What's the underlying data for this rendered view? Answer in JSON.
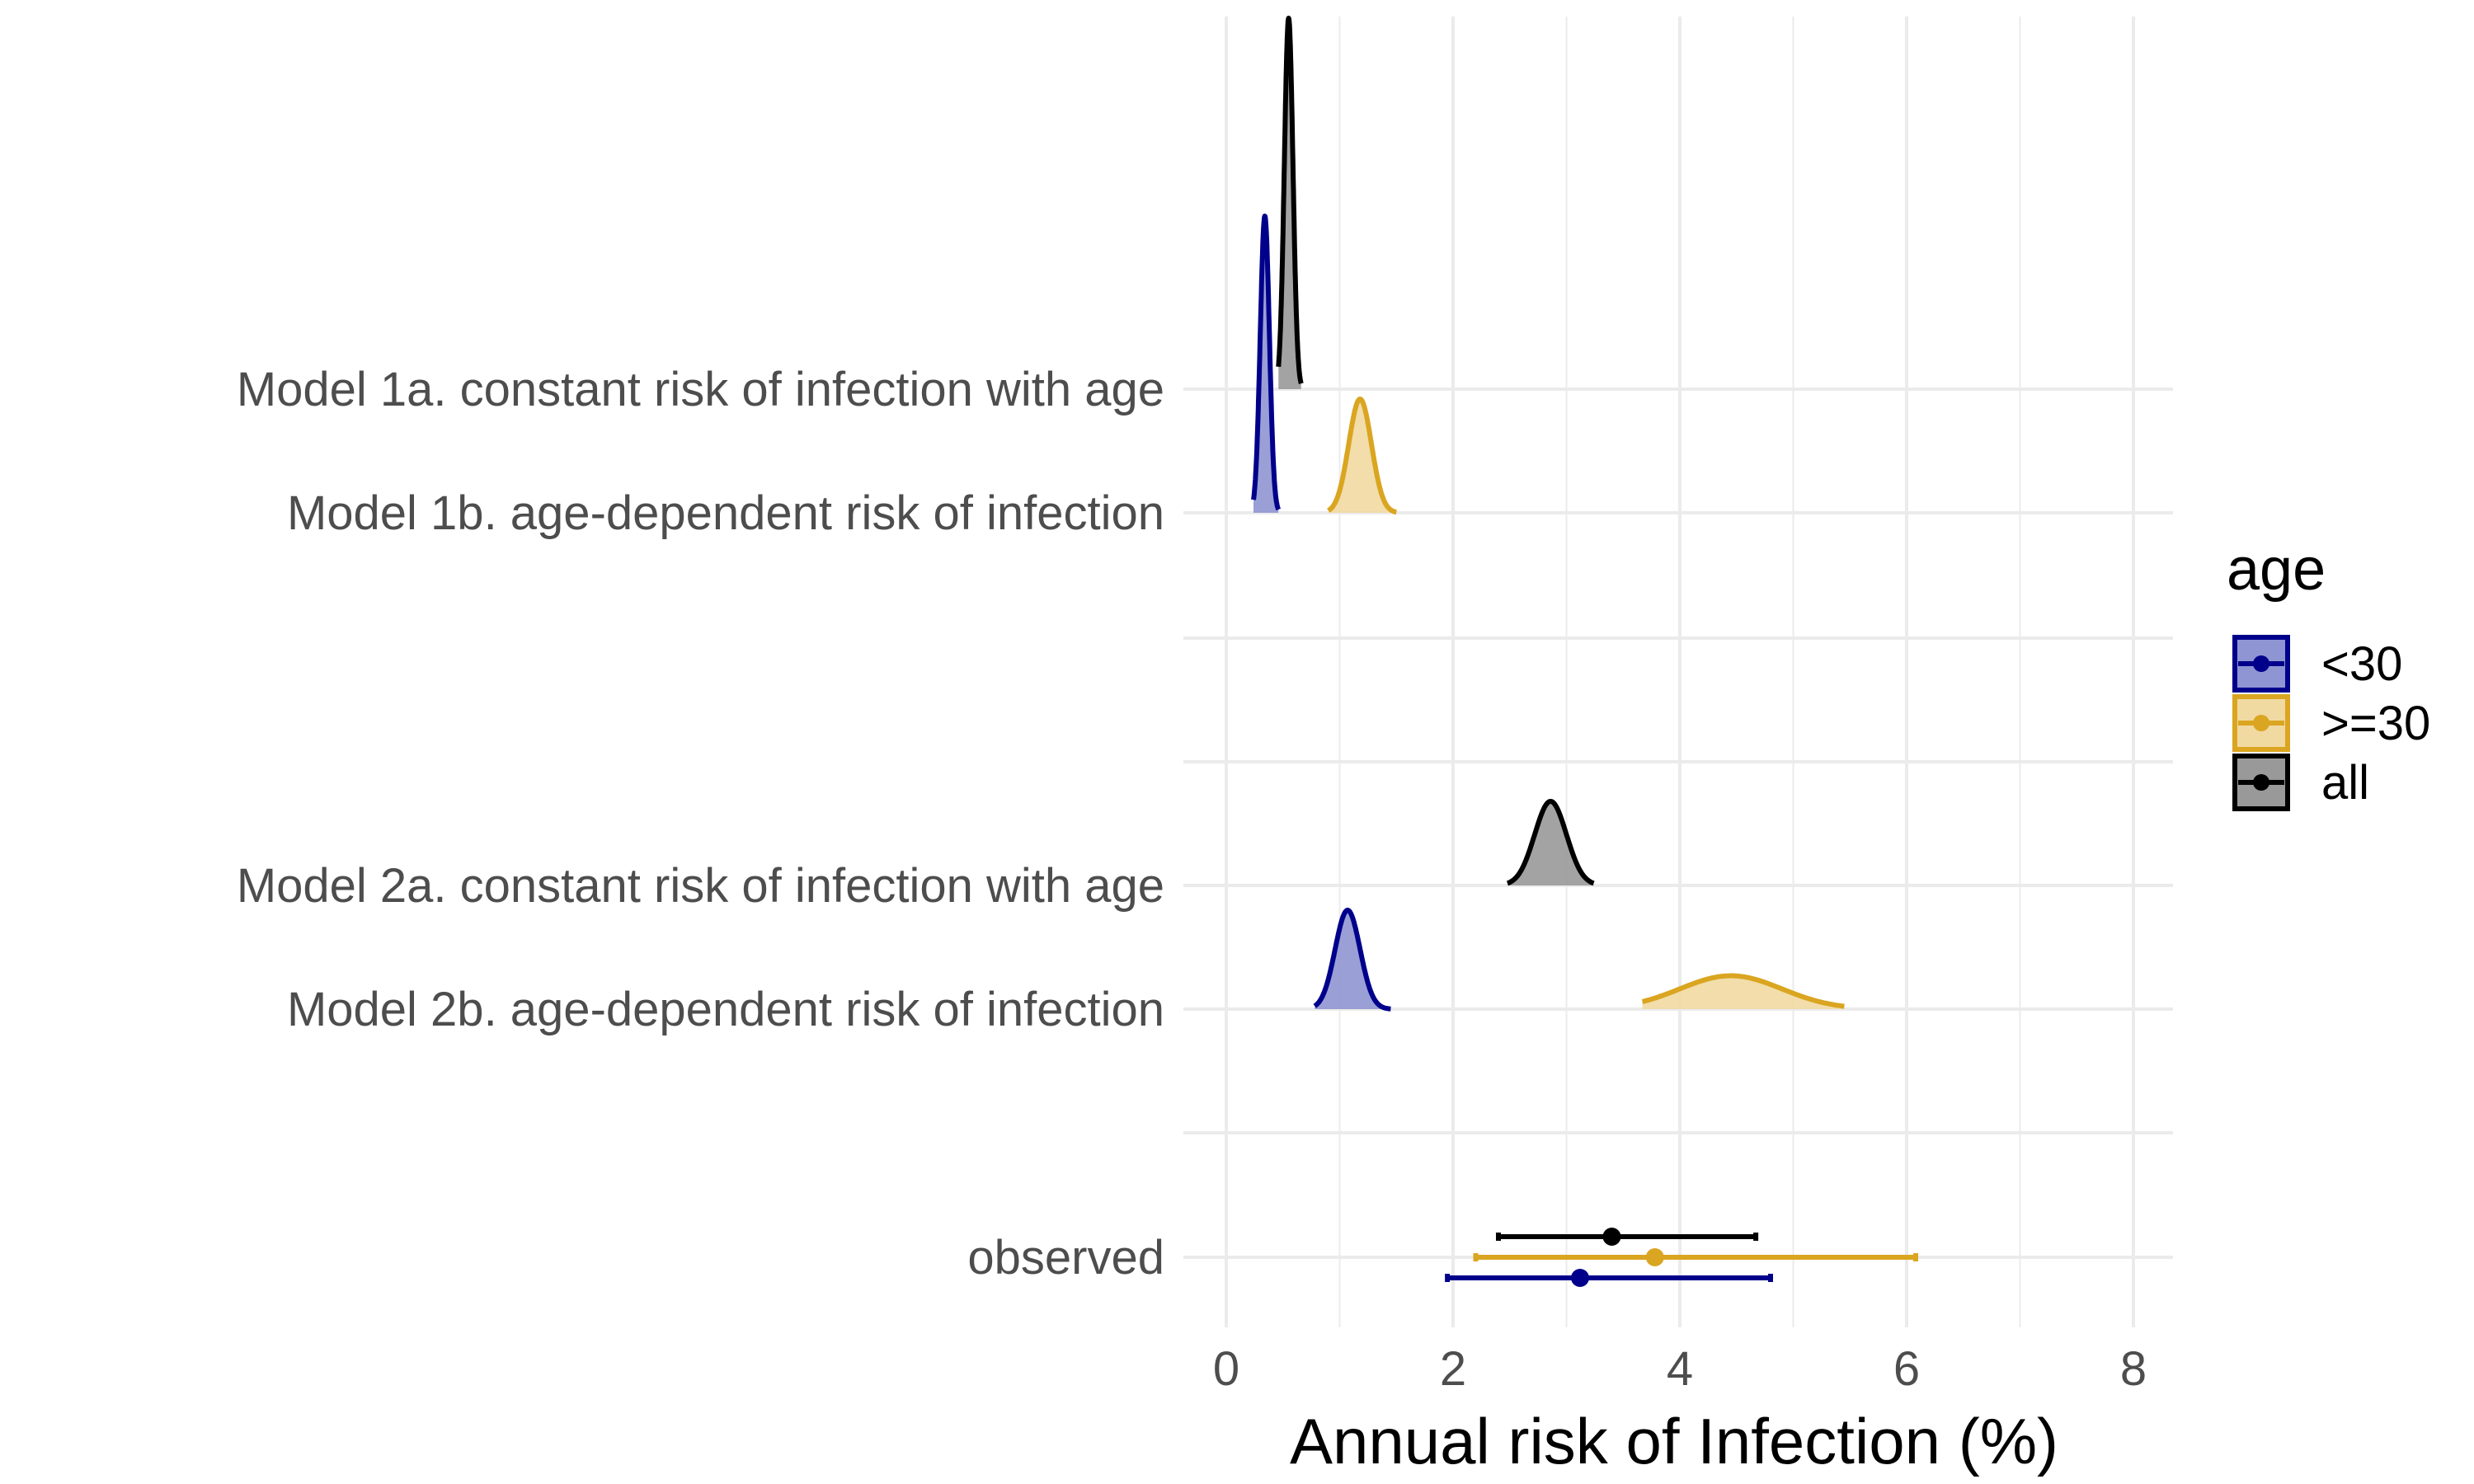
{
  "chart_data": {
    "type": "ridgeline",
    "xlabel": "Annual risk of Infection (%)",
    "xlim": [
      0,
      8
    ],
    "x_ticks": [
      "0",
      "2",
      "4",
      "6",
      "8"
    ],
    "grid": true,
    "legend_position": "right",
    "legend": {
      "title": "age",
      "entries": [
        {
          "label": "<30",
          "color": "#00008b",
          "fill": "#8f95d2"
        },
        {
          "label": ">=30",
          "color": "#daa520",
          "fill": "#f1d9a2"
        },
        {
          "label": "all",
          "color": "#000000",
          "fill": "#999999"
        }
      ]
    },
    "rows": [
      "Model 1a. constant risk of infection with age",
      "Model 1b. age-dependent risk of infection",
      "Model 2a. constant risk of infection with age",
      "Model 2b. age-dependent risk of infection",
      "observed"
    ],
    "densities": [
      {
        "row": 0,
        "group": "all",
        "mean": 0.55,
        "sd": 0.038,
        "min": 0.46,
        "max": 0.66,
        "peak_height": 3.0
      },
      {
        "row": 1,
        "group": "<30",
        "mean": 0.34,
        "sd": 0.04,
        "min": 0.24,
        "max": 0.46,
        "peak_height": 2.4
      },
      {
        "row": 1,
        "group": ">=30",
        "mean": 1.18,
        "sd": 0.1,
        "min": 0.9,
        "max": 1.5,
        "peak_height": 0.92
      },
      {
        "row": 2,
        "group": "all",
        "mean": 2.86,
        "sd": 0.14,
        "min": 2.48,
        "max": 3.24,
        "peak_height": 0.68
      },
      {
        "row": 3,
        "group": "<30",
        "mean": 1.07,
        "sd": 0.11,
        "min": 0.78,
        "max": 1.45,
        "peak_height": 0.8
      },
      {
        "row": 3,
        "group": ">=30",
        "mean": 4.45,
        "sd": 0.45,
        "min": 3.67,
        "max": 5.45,
        "peak_height": 0.27
      }
    ],
    "observed": [
      {
        "group": "all",
        "value": 3.4,
        "lower": 2.4,
        "upper": 4.67
      },
      {
        "group": ">=30",
        "value": 3.78,
        "lower": 2.2,
        "upper": 6.08
      },
      {
        "group": "<30",
        "value": 3.12,
        "lower": 1.95,
        "upper": 4.8
      }
    ]
  }
}
